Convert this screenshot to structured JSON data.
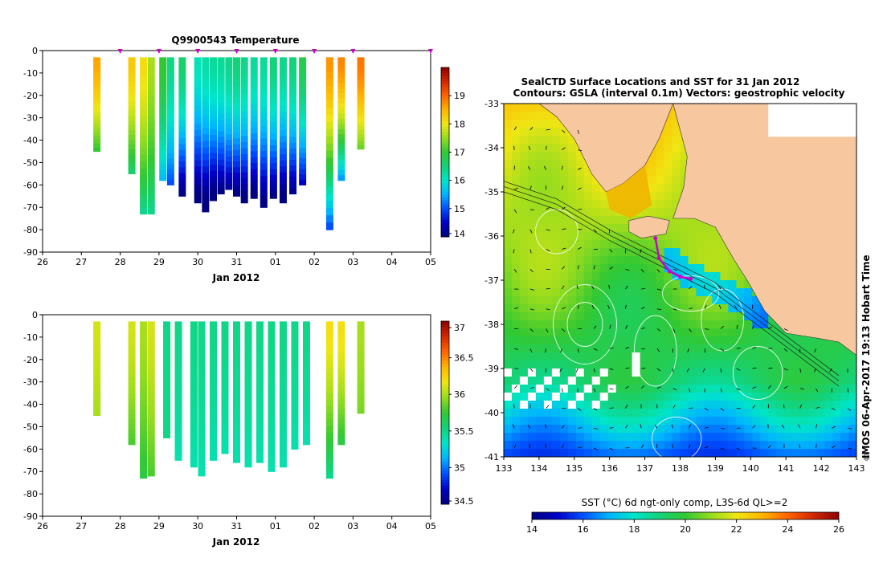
{
  "chart_data": [
    {
      "type": "heatmap",
      "title": "Q9900543  Temperature",
      "xlabel": "Jan 2012",
      "ylabel": "",
      "xlim": [
        26,
        5
      ],
      "x_tick_labels": [
        "26",
        "27",
        "28",
        "29",
        "30",
        "31",
        "01",
        "02",
        "03",
        "04",
        "05"
      ],
      "ylim": [
        -90,
        0
      ],
      "y_ticks": [
        0,
        -10,
        -20,
        -30,
        -40,
        -50,
        -60,
        -70,
        -80,
        -90
      ],
      "profile_markers": [
        "28",
        "29",
        "30",
        "31",
        "01",
        "02",
        "03",
        "05"
      ],
      "colorbar": {
        "min": 14,
        "max": 20,
        "tick_labels": [
          "19",
          "18",
          "17",
          "16",
          "15",
          "14"
        ]
      },
      "profiles": [
        {
          "x": 27.4,
          "depth_max": 45,
          "surface_value": 18.6,
          "bottom_value": 17.0
        },
        {
          "x": 28.3,
          "depth_max": 55,
          "surface_value": 18.3,
          "bottom_value": 16.6
        },
        {
          "x": 28.6,
          "depth_max": 73,
          "surface_value": 18.1,
          "bottom_value": 16.4
        },
        {
          "x": 28.8,
          "depth_max": 73,
          "surface_value": 17.6,
          "bottom_value": 16.4
        },
        {
          "x": 29.1,
          "depth_max": 58,
          "surface_value": 17.0,
          "bottom_value": 15.6
        },
        {
          "x": 29.3,
          "depth_max": 60,
          "surface_value": 16.4,
          "bottom_value": 15.0
        },
        {
          "x": 29.6,
          "depth_max": 65,
          "surface_value": 16.6,
          "bottom_value": 14.0
        },
        {
          "x": 30.0,
          "depth_max": 68,
          "surface_value": 16.1,
          "bottom_value": 13.8
        },
        {
          "x": 30.2,
          "depth_max": 72,
          "surface_value": 16.2,
          "bottom_value": 13.7
        },
        {
          "x": 30.4,
          "depth_max": 67,
          "surface_value": 16.3,
          "bottom_value": 13.8
        },
        {
          "x": 30.6,
          "depth_max": 64,
          "surface_value": 16.3,
          "bottom_value": 14.0
        },
        {
          "x": 30.8,
          "depth_max": 62,
          "surface_value": 16.4,
          "bottom_value": 14.2
        },
        {
          "x": 31.0,
          "depth_max": 65,
          "surface_value": 16.5,
          "bottom_value": 14.0
        },
        {
          "x": 31.2,
          "depth_max": 68,
          "surface_value": 16.4,
          "bottom_value": 13.9
        },
        {
          "x": 31.45,
          "depth_max": 66,
          "surface_value": 16.3,
          "bottom_value": 13.9
        },
        {
          "x": 31.7,
          "depth_max": 70,
          "surface_value": 16.3,
          "bottom_value": 13.9
        },
        {
          "x": 31.95,
          "depth_max": 66,
          "surface_value": 16.5,
          "bottom_value": 14.0
        },
        {
          "x": 32.2,
          "depth_max": 68,
          "surface_value": 16.4,
          "bottom_value": 13.8
        },
        {
          "x": 32.45,
          "depth_max": 64,
          "surface_value": 16.5,
          "bottom_value": 14.1
        },
        {
          "x": 32.7,
          "depth_max": 60,
          "surface_value": 16.8,
          "bottom_value": 14.5
        },
        {
          "x": 33.4,
          "depth_max": 80,
          "surface_value": 18.7,
          "bottom_value": 15.0
        },
        {
          "x": 33.7,
          "depth_max": 58,
          "surface_value": 18.8,
          "bottom_value": 15.4
        },
        {
          "x": 34.2,
          "depth_max": 44,
          "surface_value": 18.9,
          "bottom_value": 17.3
        }
      ]
    },
    {
      "type": "heatmap",
      "title": "",
      "xlabel": "Jan 2012",
      "ylabel": "",
      "xlim": [
        26,
        5
      ],
      "x_tick_labels": [
        "26",
        "27",
        "28",
        "29",
        "30",
        "31",
        "01",
        "02",
        "03",
        "04",
        "05"
      ],
      "ylim": [
        -90,
        0
      ],
      "y_ticks": [
        0,
        -10,
        -20,
        -30,
        -40,
        -50,
        -60,
        -70,
        -80,
        -90
      ],
      "colorbar": {
        "min": 34.5,
        "max": 37,
        "tick_labels": [
          "37",
          "36.5",
          "36",
          "35.5",
          "35",
          "34.5"
        ]
      },
      "profiles": [
        {
          "x": 27.4,
          "depth_max": 45,
          "surface_value": 36.1,
          "bottom_value": 36.0
        },
        {
          "x": 28.3,
          "depth_max": 58,
          "surface_value": 36.1,
          "bottom_value": 35.8
        },
        {
          "x": 28.6,
          "depth_max": 73,
          "surface_value": 36.0,
          "bottom_value": 35.7
        },
        {
          "x": 28.8,
          "depth_max": 72,
          "surface_value": 36.1,
          "bottom_value": 35.8
        },
        {
          "x": 29.2,
          "depth_max": 55,
          "surface_value": 35.5,
          "bottom_value": 35.5
        },
        {
          "x": 29.5,
          "depth_max": 65,
          "surface_value": 35.5,
          "bottom_value": 35.4
        },
        {
          "x": 29.9,
          "depth_max": 68,
          "surface_value": 35.5,
          "bottom_value": 35.4
        },
        {
          "x": 30.1,
          "depth_max": 72,
          "surface_value": 35.5,
          "bottom_value": 35.4
        },
        {
          "x": 30.4,
          "depth_max": 65,
          "surface_value": 35.5,
          "bottom_value": 35.4
        },
        {
          "x": 30.7,
          "depth_max": 62,
          "surface_value": 35.5,
          "bottom_value": 35.4
        },
        {
          "x": 31.0,
          "depth_max": 66,
          "surface_value": 35.5,
          "bottom_value": 35.4
        },
        {
          "x": 31.3,
          "depth_max": 68,
          "surface_value": 35.5,
          "bottom_value": 35.4
        },
        {
          "x": 31.6,
          "depth_max": 66,
          "surface_value": 35.5,
          "bottom_value": 35.4
        },
        {
          "x": 31.9,
          "depth_max": 70,
          "surface_value": 35.5,
          "bottom_value": 35.4
        },
        {
          "x": 32.2,
          "depth_max": 68,
          "surface_value": 35.5,
          "bottom_value": 35.4
        },
        {
          "x": 32.5,
          "depth_max": 60,
          "surface_value": 35.5,
          "bottom_value": 35.4
        },
        {
          "x": 32.8,
          "depth_max": 58,
          "surface_value": 35.5,
          "bottom_value": 35.4
        },
        {
          "x": 33.4,
          "depth_max": 73,
          "surface_value": 36.2,
          "bottom_value": 35.5
        },
        {
          "x": 33.7,
          "depth_max": 58,
          "surface_value": 36.2,
          "bottom_value": 35.7
        },
        {
          "x": 34.2,
          "depth_max": 44,
          "surface_value": 36.0,
          "bottom_value": 35.9
        }
      ]
    },
    {
      "type": "heatmap",
      "title": "SealCTD Surface Locations and SST for 31 Jan 2012",
      "subtitle": "Contours: GSLA (interval 0.1m) Vectors: geostrophic velocity",
      "xlabel": "",
      "ylabel": "",
      "xlim": [
        133,
        143
      ],
      "x_tick_labels": [
        "133",
        "134",
        "135",
        "136",
        "137",
        "138",
        "139",
        "140",
        "141",
        "142",
        "143"
      ],
      "ylim": [
        -41,
        -33
      ],
      "y_tick_labels": [
        "-33",
        "-34",
        "-35",
        "-36",
        "-37",
        "-38",
        "-39",
        "-40",
        "-41"
      ],
      "colorbar": {
        "label": "SST (°C) 6d ngt-only comp, L3S-6d QL>=2",
        "min": 14,
        "max": 26,
        "tick_labels": [
          "14",
          "16",
          "18",
          "20",
          "22",
          "24",
          "26"
        ]
      },
      "seal_track": [
        {
          "lon": 137.3,
          "lat": -36.05
        },
        {
          "lon": 137.4,
          "lat": -36.5
        },
        {
          "lon": 137.7,
          "lat": -36.8
        },
        {
          "lon": 138.0,
          "lat": -36.92
        },
        {
          "lon": 138.3,
          "lat": -36.97
        }
      ],
      "watermark": "IMOS 06-Apr-2017 19:13 Hobart Time"
    }
  ],
  "colors": {
    "land": "#f7c8a0",
    "colormap": [
      "#000080",
      "#0000c8",
      "#0050ff",
      "#00b4ff",
      "#00e6c8",
      "#14d278",
      "#32c832",
      "#96dc1e",
      "#f0e614",
      "#ffb400",
      "#ff6400",
      "#d22800",
      "#8c0000"
    ],
    "marker": "#cc00cc",
    "contour": "#ffffff",
    "vector": "#000000"
  }
}
